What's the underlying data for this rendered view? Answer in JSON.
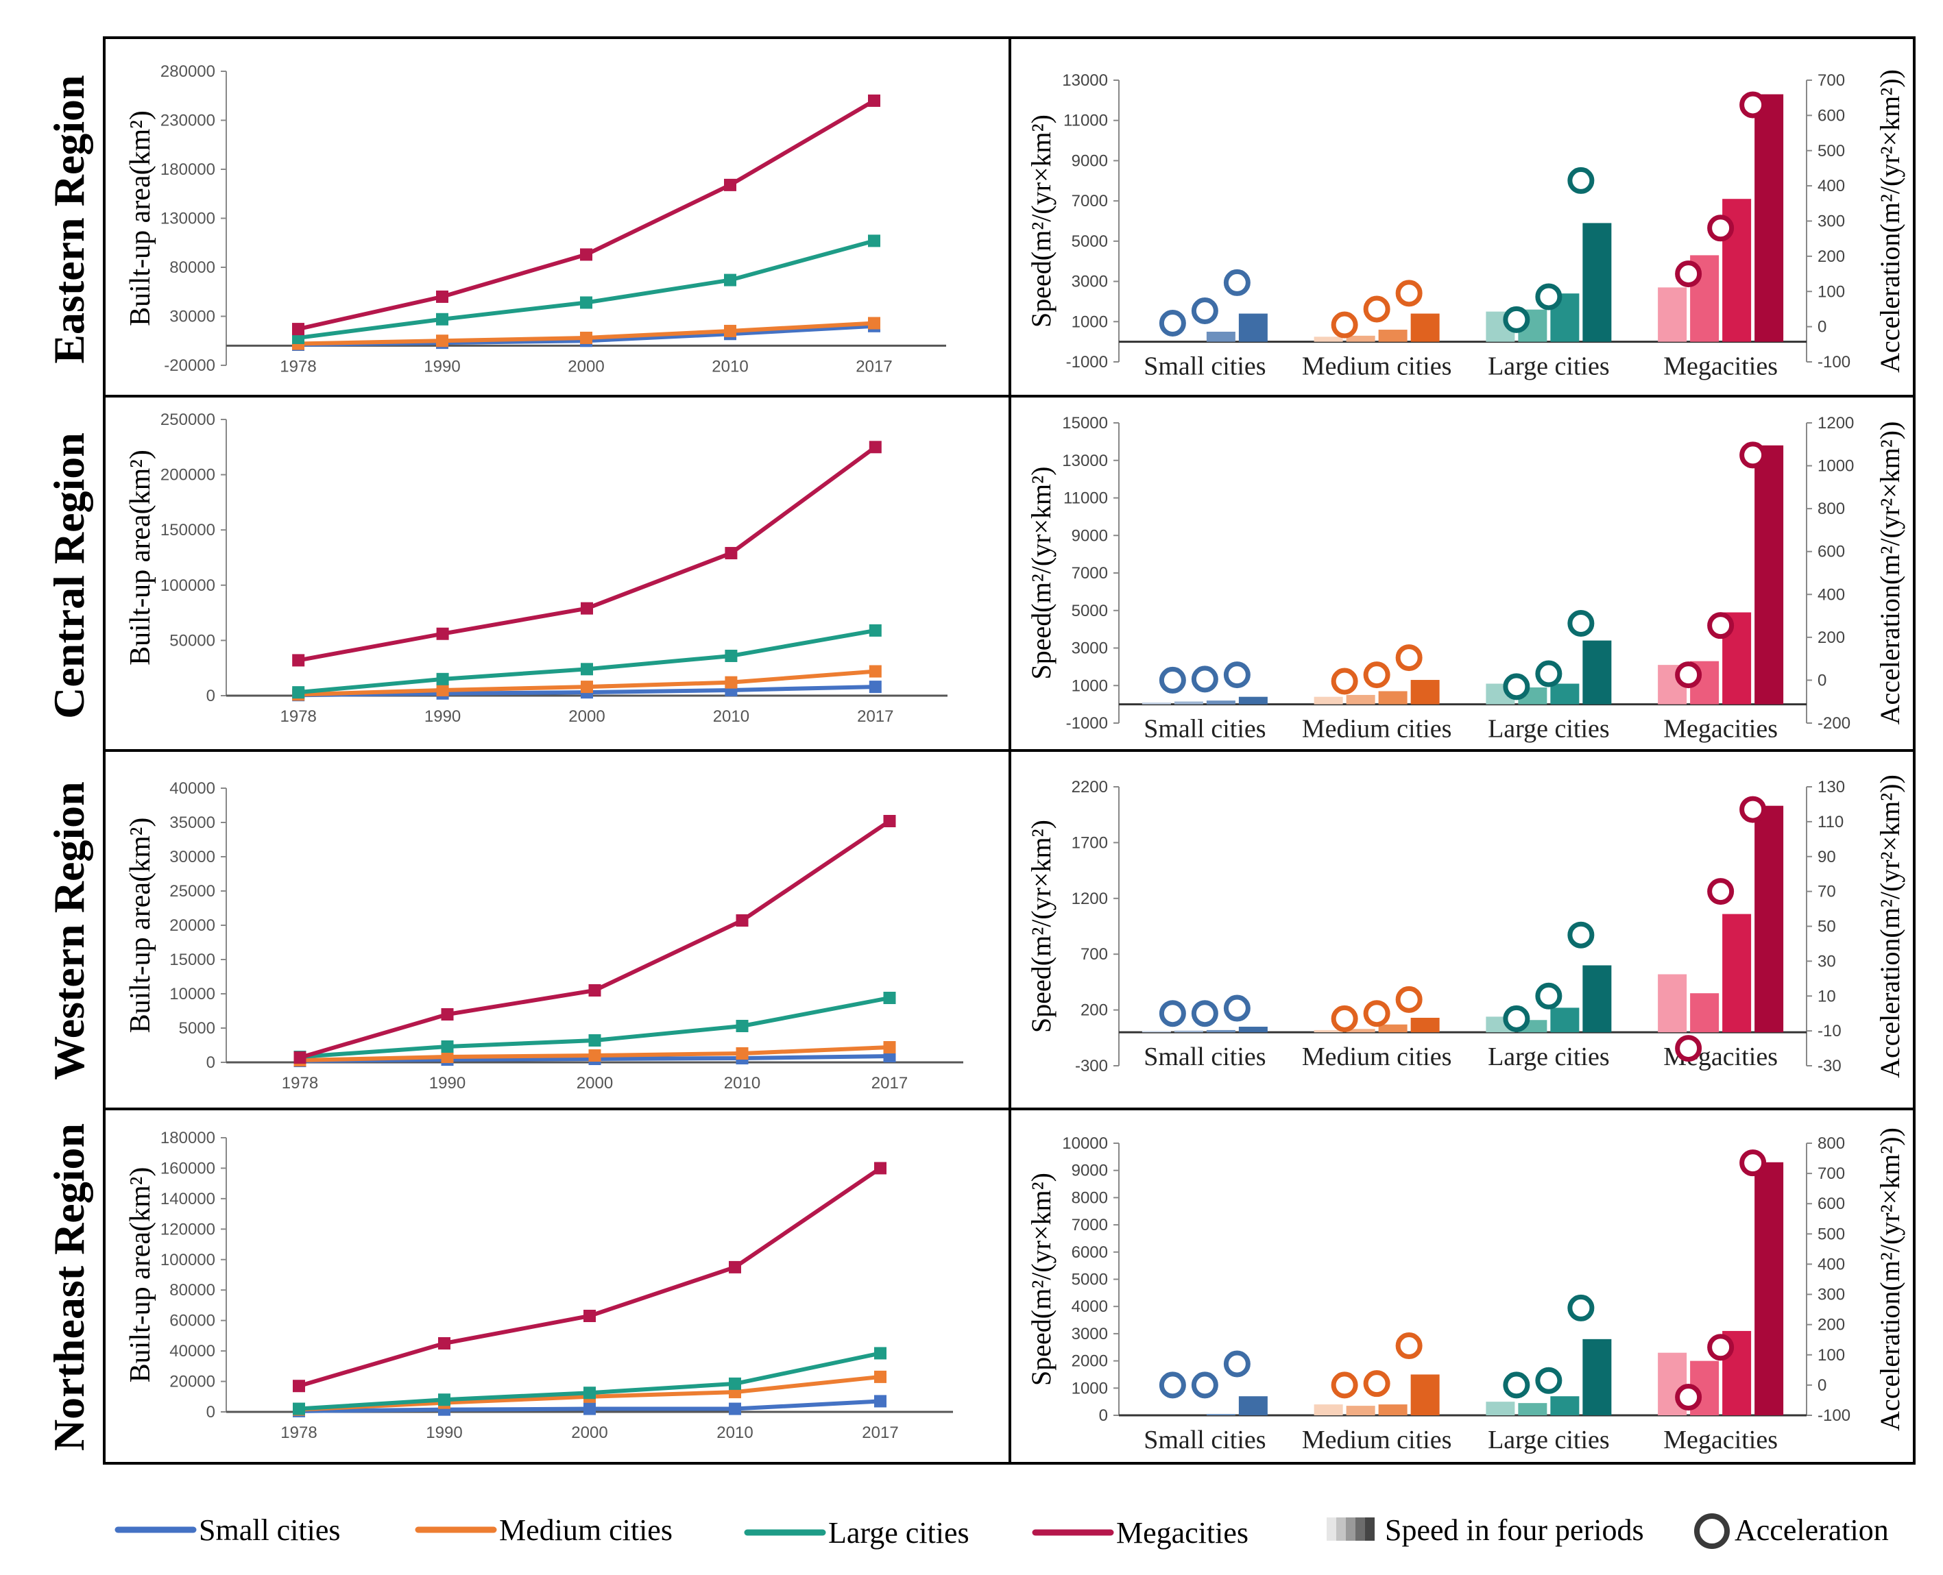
{
  "colors": {
    "small": "#4472C4",
    "medium": "#ED7D31",
    "large": "#1E9C87",
    "mega": "#B5174B",
    "small_bars": [
      "#C5D3E6",
      "#9FB6D4",
      "#6C90BE",
      "#3E6DA6"
    ],
    "medium_bars": [
      "#F8D2BA",
      "#F2AD84",
      "#EC8A4F",
      "#E0621F"
    ],
    "large_bars": [
      "#9FD2C9",
      "#5FB5A7",
      "#24918A",
      "#0B6C6C"
    ],
    "mega_bars": [
      "#F59AAB",
      "#EC5C7D",
      "#D41C4E",
      "#A9083A"
    ]
  },
  "legend": {
    "small": "Small cities",
    "medium": "Medium cities",
    "large": "Large cities",
    "mega": "Megacities",
    "speed": "Speed in four periods",
    "accel": "Acceleration"
  },
  "chart_data": [
    {
      "region": "Eastern Region",
      "line": {
        "type": "line",
        "ylabel": "Built-up area(km²)",
        "x": [
          "1978",
          "1990",
          "2000",
          "2010",
          "2017"
        ],
        "ylim": [
          -20000,
          280000
        ],
        "yticks": [
          "-20000",
          "30000",
          "80000",
          "130000",
          "180000",
          "230000",
          "280000"
        ],
        "series": [
          {
            "name": "Small cities",
            "values": [
              1000,
              3000,
              5000,
              12000,
              20000
            ]
          },
          {
            "name": "Medium cities",
            "values": [
              2000,
              5000,
              8000,
              15000,
              23000
            ]
          },
          {
            "name": "Large cities",
            "values": [
              8000,
              27000,
              44000,
              67000,
              107000
            ]
          },
          {
            "name": "Megacities",
            "values": [
              17000,
              50000,
              93000,
              164000,
              250000
            ]
          }
        ]
      },
      "speed": {
        "type": "bar",
        "ylabel": "Speed(m²/(yr×km²)",
        "y2label": "Acceleration(m²/(yr²×km²))",
        "ylim": [
          -1000,
          13000
        ],
        "y2lim": [
          -100,
          700
        ],
        "yticks": [
          "-1000",
          "1000",
          "3000",
          "5000",
          "7000",
          "9000",
          "11000",
          "13000"
        ],
        "y2ticks": [
          "-100",
          "0",
          "100",
          "200",
          "300",
          "400",
          "500",
          "600",
          "700"
        ],
        "categories": [
          "Small cities",
          "Medium cities",
          "Large cities",
          "Megacities"
        ],
        "speed": [
          [
            0,
            0,
            500,
            1400
          ],
          [
            250,
            300,
            600,
            1400
          ],
          [
            1500,
            1600,
            2400,
            5900
          ],
          [
            2700,
            4300,
            7100,
            12300
          ]
        ],
        "acceleration": [
          [
            10,
            45,
            125
          ],
          [
            5,
            50,
            95
          ],
          [
            20,
            85,
            415
          ],
          [
            150,
            280,
            630
          ]
        ]
      }
    },
    {
      "region": "Central Region",
      "line": {
        "type": "line",
        "ylabel": "Built-up area(km²)",
        "x": [
          "1978",
          "1990",
          "2000",
          "2010",
          "2017"
        ],
        "ylim": [
          0,
          250000
        ],
        "yticks": [
          "0",
          "50000",
          "100000",
          "150000",
          "200000",
          "250000"
        ],
        "series": [
          {
            "name": "Small cities",
            "values": [
              500,
              2000,
              3000,
              5000,
              8000
            ]
          },
          {
            "name": "Medium cities",
            "values": [
              1000,
              5000,
              8000,
              12000,
              22000
            ]
          },
          {
            "name": "Large cities",
            "values": [
              3000,
              15000,
              24000,
              36000,
              59000
            ]
          },
          {
            "name": "Megacities",
            "values": [
              32000,
              56000,
              79000,
              129000,
              225000
            ]
          }
        ]
      },
      "speed": {
        "type": "bar",
        "ylabel": "Speed(m²/(yr×km²)",
        "y2label": "Acceleration(m²/(yr²×km²))",
        "ylim": [
          -1000,
          15000
        ],
        "y2lim": [
          -200,
          1200
        ],
        "yticks": [
          "-1000",
          "1000",
          "3000",
          "5000",
          "7000",
          "9000",
          "11000",
          "13000",
          "15000"
        ],
        "y2ticks": [
          "-200",
          "0",
          "200",
          "400",
          "600",
          "800",
          "1000",
          "1200"
        ],
        "categories": [
          "Small cities",
          "Medium cities",
          "Large cities",
          "Megacities"
        ],
        "speed": [
          [
            100,
            150,
            200,
            400
          ],
          [
            400,
            500,
            700,
            1300
          ],
          [
            1100,
            900,
            1100,
            3400
          ],
          [
            2100,
            2300,
            4900,
            13800
          ]
        ],
        "acceleration": [
          [
            0,
            5,
            25
          ],
          [
            -5,
            25,
            105
          ],
          [
            -30,
            30,
            265
          ],
          [
            25,
            255,
            1050
          ]
        ]
      }
    },
    {
      "region": "Western Region",
      "line": {
        "type": "line",
        "ylabel": "Built-up area(km²)",
        "x": [
          "1978",
          "1990",
          "2000",
          "2010",
          "2017"
        ],
        "ylim": [
          0,
          40000
        ],
        "yticks": [
          "0",
          "5000",
          "10000",
          "15000",
          "20000",
          "25000",
          "30000",
          "35000",
          "40000"
        ],
        "series": [
          {
            "name": "Small cities",
            "values": [
              200,
              400,
              500,
              600,
              900
            ]
          },
          {
            "name": "Medium cities",
            "values": [
              300,
              800,
              1000,
              1300,
              2200
            ]
          },
          {
            "name": "Large cities",
            "values": [
              800,
              2300,
              3200,
              5300,
              9400
            ]
          },
          {
            "name": "Megacities",
            "values": [
              700,
              7000,
              10500,
              20700,
              35200
            ]
          }
        ]
      },
      "speed": {
        "type": "bar",
        "ylabel": "Speed(m²/(yr×km²)",
        "y2label": "Acceleration(m²/(yr²×km²))",
        "ylim": [
          -300,
          2200
        ],
        "y2lim": [
          -30,
          130
        ],
        "yticks": [
          "-300",
          "200",
          "700",
          "1200",
          "1700",
          "2200"
        ],
        "y2ticks": [
          "-30",
          "-10",
          "10",
          "30",
          "50",
          "70",
          "90",
          "110",
          "130"
        ],
        "categories": [
          "Small cities",
          "Medium cities",
          "Large cities",
          "Megacities"
        ],
        "speed": [
          [
            10,
            15,
            20,
            50
          ],
          [
            20,
            30,
            70,
            130
          ],
          [
            140,
            110,
            220,
            600
          ],
          [
            520,
            350,
            1060,
            2030
          ]
        ],
        "acceleration": [
          [
            0,
            0,
            3
          ],
          [
            -3,
            0,
            8
          ],
          [
            -3,
            10,
            45
          ],
          [
            -20,
            70,
            117
          ]
        ]
      }
    },
    {
      "region": "Northeast Region",
      "line": {
        "type": "line",
        "ylabel": "Built-up area(km²)",
        "x": [
          "1978",
          "1990",
          "2000",
          "2010",
          "2017"
        ],
        "ylim": [
          0,
          180000
        ],
        "yticks": [
          "0",
          "20000",
          "40000",
          "60000",
          "80000",
          "100000",
          "120000",
          "140000",
          "160000",
          "180000"
        ],
        "series": [
          {
            "name": "Small cities",
            "values": [
              500,
              1500,
              2000,
              2000,
              7000
            ]
          },
          {
            "name": "Medium cities",
            "values": [
              1500,
              6000,
              10000,
              13000,
              23000
            ]
          },
          {
            "name": "Large cities",
            "values": [
              2000,
              8000,
              12500,
              18500,
              38500
            ]
          },
          {
            "name": "Megacities",
            "values": [
              17000,
              45000,
              63000,
              95000,
              160000
            ]
          }
        ]
      },
      "speed": {
        "type": "bar",
        "ylabel": "Speed(m²/(yr×km²)",
        "y2label": "Acceleration(m²/(yr²×km²))",
        "ylim": [
          0,
          10000
        ],
        "y2lim": [
          -100,
          800
        ],
        "yticks": [
          "0",
          "1000",
          "2000",
          "3000",
          "4000",
          "5000",
          "6000",
          "7000",
          "8000",
          "9000",
          "10000"
        ],
        "y2ticks": [
          "-100",
          "0",
          "100",
          "200",
          "300",
          "400",
          "500",
          "600",
          "700",
          "800"
        ],
        "categories": [
          "Small cities",
          "Medium cities",
          "Large cities",
          "Megacities"
        ],
        "speed": [
          [
            0,
            0,
            50,
            700
          ],
          [
            400,
            350,
            400,
            1500
          ],
          [
            500,
            450,
            700,
            2800
          ],
          [
            2300,
            2000,
            3100,
            9300
          ]
        ],
        "acceleration": [
          [
            0,
            0,
            70
          ],
          [
            0,
            5,
            130
          ],
          [
            0,
            15,
            255
          ],
          [
            -40,
            125,
            735
          ]
        ]
      }
    }
  ]
}
